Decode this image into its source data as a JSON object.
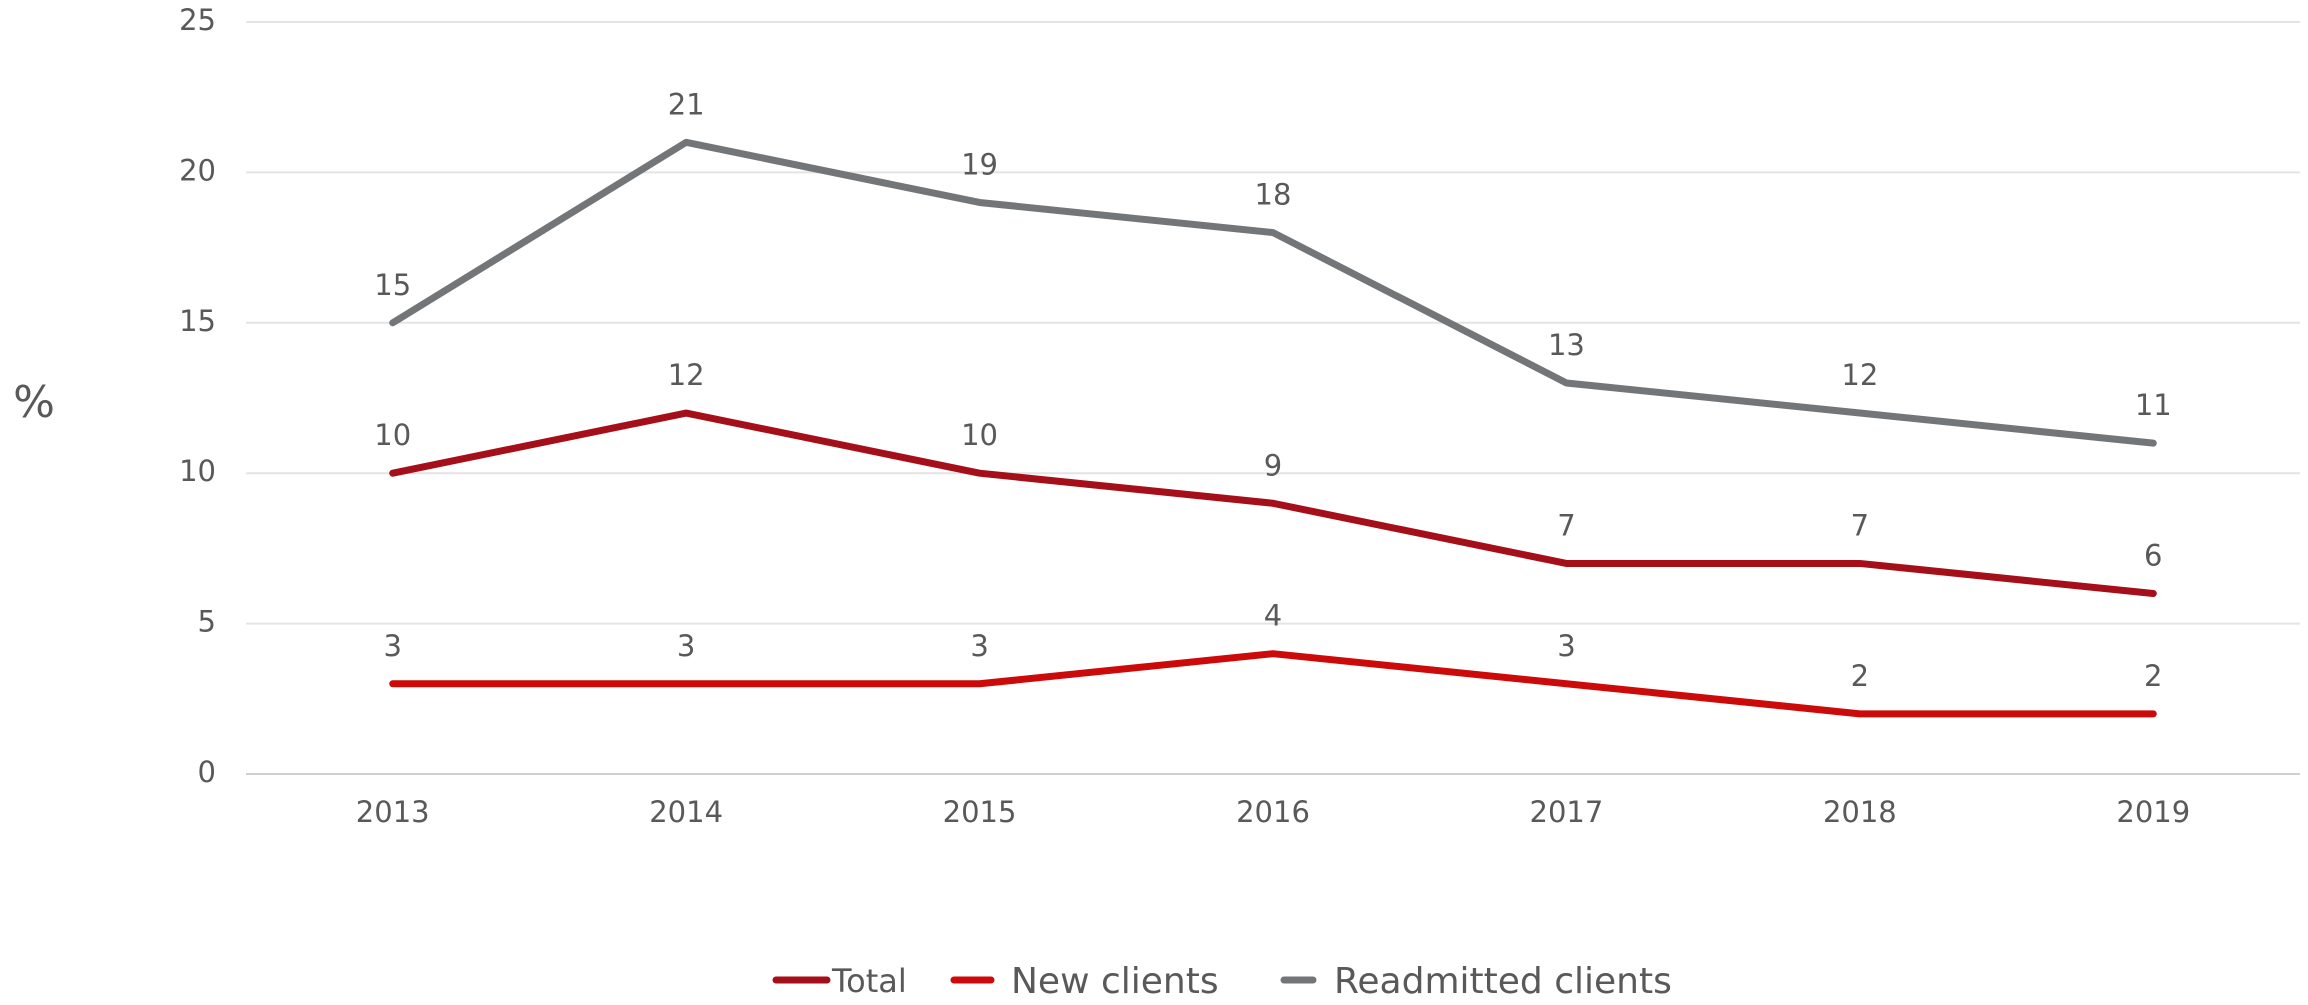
{
  "chart_data": {
    "type": "line",
    "y_label": "%",
    "categories": [
      "2013",
      "2014",
      "2015",
      "2016",
      "2017",
      "2018",
      "2019"
    ],
    "series": [
      {
        "name": "Total",
        "color": "#a50f1a",
        "values": [
          10,
          12,
          10,
          9,
          7,
          7,
          6
        ]
      },
      {
        "name": "New clients",
        "color": "#cc0a0a",
        "values": [
          3,
          3,
          3,
          4,
          3,
          2,
          2
        ]
      },
      {
        "name": "Readmitted clients",
        "color": "#737679",
        "values": [
          15,
          21,
          19,
          18,
          13,
          12,
          11
        ]
      }
    ],
    "ylim": [
      0,
      25
    ],
    "yticks": [
      0,
      5,
      10,
      15,
      20,
      25
    ],
    "grid": true,
    "legend": "bottom"
  }
}
